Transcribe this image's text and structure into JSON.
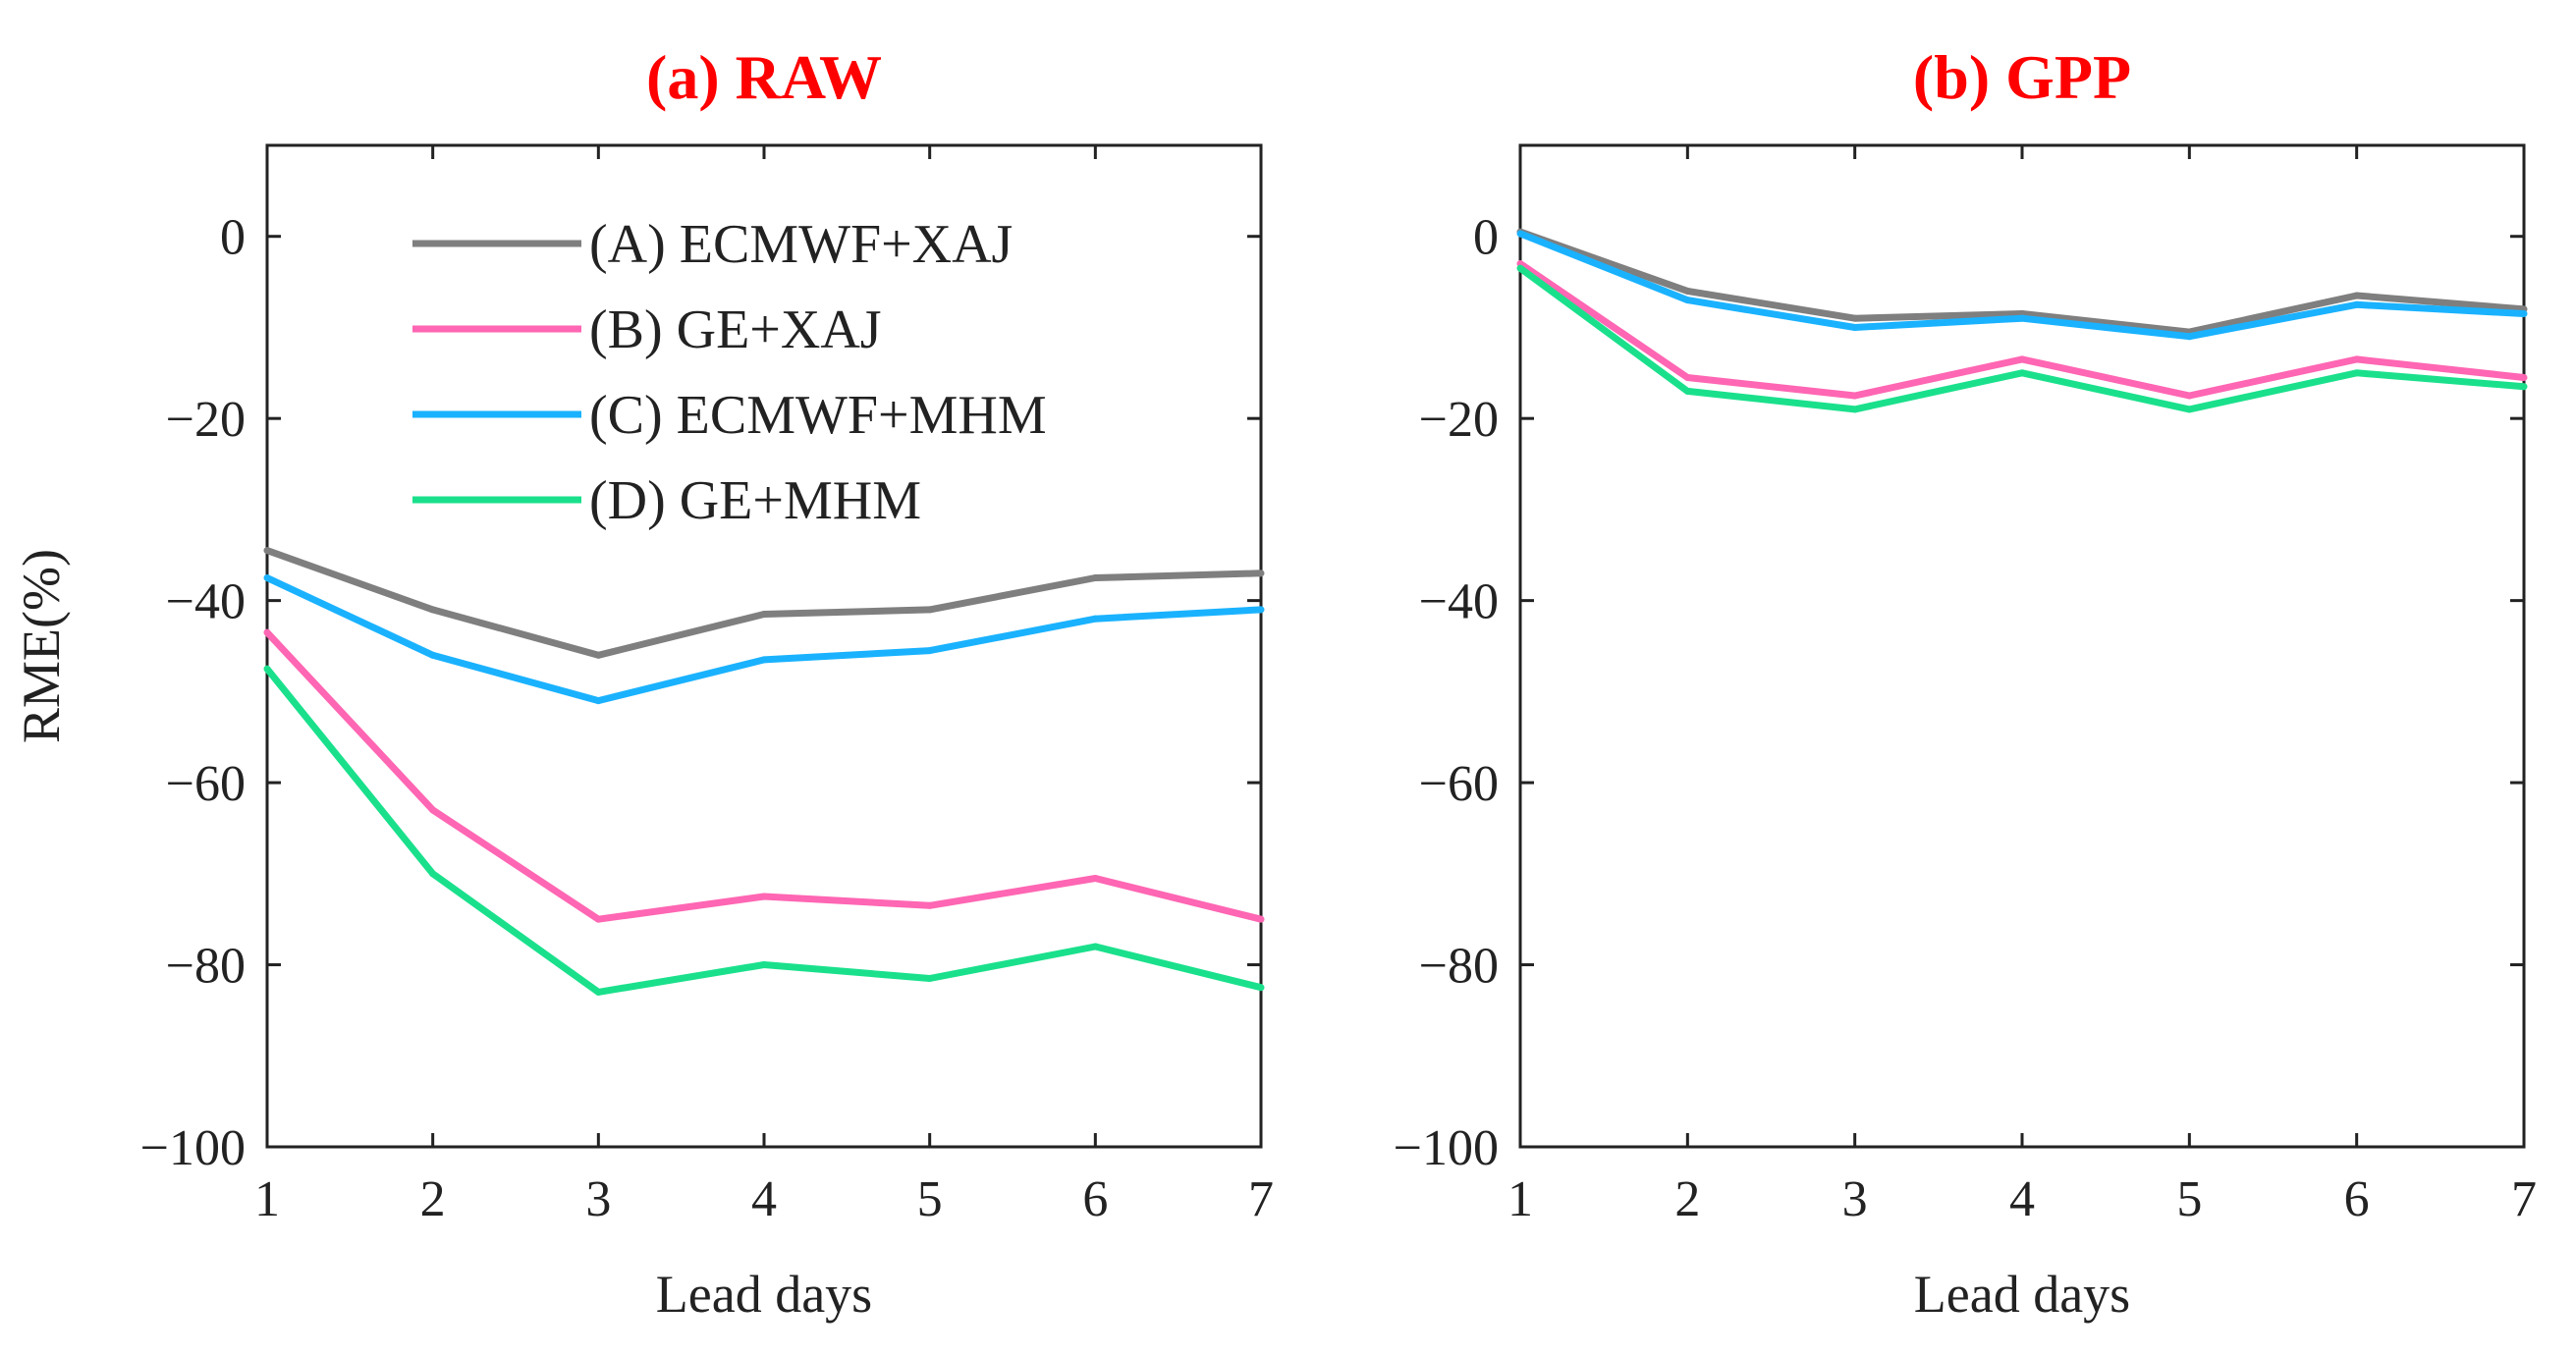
{
  "chart_data": [
    {
      "type": "line",
      "title": "(a) RAW",
      "title_color": "#ff0000",
      "xlabel": "Lead days",
      "ylabel": "RME(%)",
      "xlim": [
        1,
        7
      ],
      "ylim": [
        -100,
        10
      ],
      "xticks": [
        1,
        2,
        3,
        4,
        5,
        6,
        7
      ],
      "yticks": [
        -100,
        -80,
        -60,
        -40,
        -20,
        0
      ],
      "ytick_labels": [
        "−100",
        "−80",
        "−60",
        "−40",
        "−20",
        "0"
      ],
      "x": [
        1,
        2,
        3,
        4,
        5,
        6,
        7
      ],
      "legend": "top",
      "series": [
        {
          "name": "(A) ECMWF+XAJ",
          "color": "#7f7f7f",
          "values": [
            -34.5,
            -41,
            -46,
            -41.5,
            -41,
            -37.5,
            -37
          ]
        },
        {
          "name": "(B) GE+XAJ",
          "color": "#ff66b3",
          "values": [
            -43.5,
            -63,
            -75,
            -72.5,
            -73.5,
            -70.5,
            -75
          ]
        },
        {
          "name": "(C) ECMWF+MHM",
          "color": "#1ab2ff",
          "values": [
            -37.5,
            -46,
            -51,
            -46.5,
            -45.5,
            -42,
            -41
          ]
        },
        {
          "name": "(D) GE+MHM",
          "color": "#1ae08c",
          "values": [
            -47.5,
            -70,
            -83,
            -80,
            -81.5,
            -78,
            -82.5
          ]
        }
      ]
    },
    {
      "type": "line",
      "title": "(b) GPP",
      "title_color": "#ff0000",
      "xlabel": "Lead days",
      "ylabel": "",
      "xlim": [
        1,
        7
      ],
      "ylim": [
        -100,
        10
      ],
      "xticks": [
        1,
        2,
        3,
        4,
        5,
        6,
        7
      ],
      "yticks": [
        -100,
        -80,
        -60,
        -40,
        -20,
        0
      ],
      "ytick_labels": [
        "−100",
        "−80",
        "−60",
        "−40",
        "−20",
        "0"
      ],
      "x": [
        1,
        2,
        3,
        4,
        5,
        6,
        7
      ],
      "series": [
        {
          "name": "(A) ECMWF+XAJ",
          "color": "#7f7f7f",
          "values": [
            0.5,
            -6,
            -9,
            -8.5,
            -10.5,
            -6.5,
            -8
          ]
        },
        {
          "name": "(B) GE+XAJ",
          "color": "#ff66b3",
          "values": [
            -3,
            -15.5,
            -17.5,
            -13.5,
            -17.5,
            -13.5,
            -15.5
          ]
        },
        {
          "name": "(C) ECMWF+MHM",
          "color": "#1ab2ff",
          "values": [
            0.3,
            -7,
            -10,
            -9,
            -11,
            -7.5,
            -8.5
          ]
        },
        {
          "name": "(D) GE+MHM",
          "color": "#1ae08c",
          "values": [
            -3.5,
            -17,
            -19,
            -15,
            -19,
            -15,
            -16.5
          ]
        }
      ]
    }
  ]
}
